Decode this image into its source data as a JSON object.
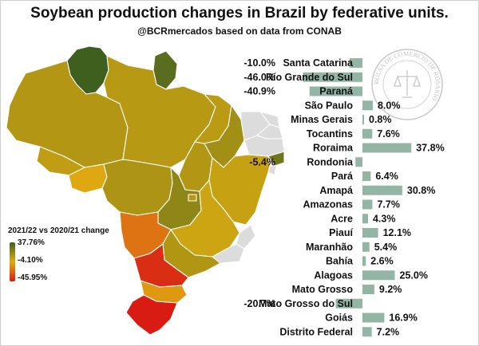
{
  "header": {
    "title": "Soybean production changes in Brazil by federative units.",
    "subtitle": "@BCRmercados based on data from CONAB"
  },
  "legend": {
    "title": "2021/22 vs 2020/21 change",
    "max_label": "37.76%",
    "mid_label": "-4.10%",
    "min_label": "-45.95%",
    "colors": {
      "max": "#3f5f1f",
      "mid": "#e0ad10",
      "min": "#d81c14"
    }
  },
  "colors": {
    "bar": "#93b5a6",
    "nodata": "#dcdcdc"
  },
  "chart_data": {
    "type": "bar",
    "orientation": "horizontal",
    "categories": [
      "Santa Catarina",
      "Río Grande do Sul",
      "Paraná",
      "São Paulo",
      "Minas Gerais",
      "Tocantins",
      "Roraima",
      "Rondonia",
      "Pará",
      "Amapá",
      "Amazonas",
      "Acre",
      "Piauí",
      "Maranhão",
      "Bahía",
      "Alagoas",
      "Mato Grosso",
      "Mato Grosso do Sul",
      "Goiás",
      "Distrito Federal"
    ],
    "values": [
      -10.0,
      -46.0,
      -40.9,
      8.0,
      0.8,
      7.6,
      37.8,
      -5.4,
      6.4,
      30.8,
      7.7,
      4.3,
      12.1,
      5.4,
      2.6,
      25.0,
      9.2,
      -20.7,
      16.9,
      7.2
    ],
    "value_labels": [
      "-10.0%",
      "-46.0%",
      "-40.9%",
      "8.0%",
      "0.8%",
      "7.6%",
      "37.8%",
      "-5.4%",
      "6.4%",
      "30.8%",
      "7.7%",
      "4.3%",
      "12.1%",
      "5.4%",
      "2.6%",
      "25.0%",
      "9.2%",
      "-20.7%",
      "16.9%",
      "7.2%"
    ]
  },
  "map": {
    "states": [
      {
        "name": "Roraima",
        "value": 37.8
      },
      {
        "name": "Amapá",
        "value": 30.8
      },
      {
        "name": "Amazonas",
        "value": 7.7
      },
      {
        "name": "Pará",
        "value": 6.4
      },
      {
        "name": "Acre",
        "value": 4.3
      },
      {
        "name": "Rondonia",
        "value": -5.4
      },
      {
        "name": "Mato Grosso",
        "value": 9.2
      },
      {
        "name": "Tocantins",
        "value": 7.6
      },
      {
        "name": "Maranhão",
        "value": 5.4
      },
      {
        "name": "Piauí",
        "value": 12.1
      },
      {
        "name": "Bahía",
        "value": 2.6
      },
      {
        "name": "Goiás",
        "value": 16.9
      },
      {
        "name": "Distrito Federal",
        "value": 7.2
      },
      {
        "name": "Minas Gerais",
        "value": 0.8
      },
      {
        "name": "Mato Grosso do Sul",
        "value": -20.7
      },
      {
        "name": "São Paulo",
        "value": 8.0
      },
      {
        "name": "Paraná",
        "value": -40.9
      },
      {
        "name": "Santa Catarina",
        "value": -10.0
      },
      {
        "name": "Río Grande do Sul",
        "value": -46.0
      },
      {
        "name": "Alagoas",
        "value": 25.0
      },
      {
        "name": "Ceará",
        "value": null
      },
      {
        "name": "Rio Grande do Norte",
        "value": null
      },
      {
        "name": "Paraíba",
        "value": null
      },
      {
        "name": "Pernambuco",
        "value": null
      },
      {
        "name": "Sergipe",
        "value": null
      },
      {
        "name": "Espírito Santo",
        "value": null
      },
      {
        "name": "Rio de Janeiro",
        "value": null
      }
    ]
  },
  "watermark": {
    "icon": "bolsa-de-comercio-seal-icon",
    "text": "BOLSA DE COMERCIO DE ROSARIO"
  }
}
